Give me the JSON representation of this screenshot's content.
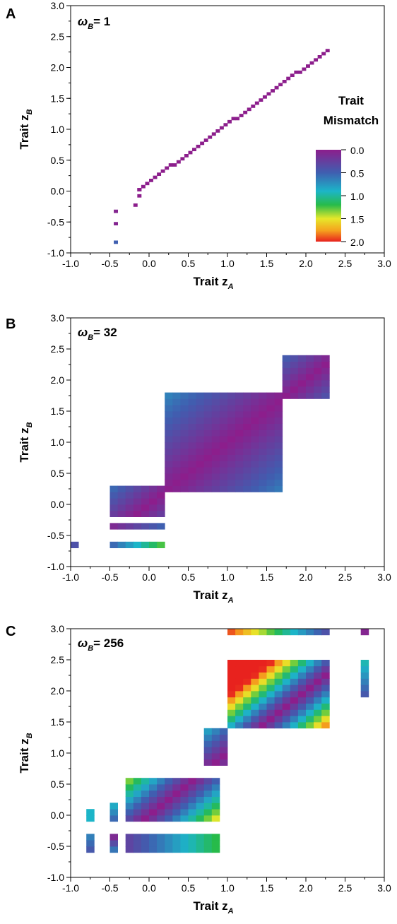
{
  "chart_data": [
    {
      "type": "heatmap",
      "panel_label": "A",
      "annotation": "= 1",
      "annotation_prefix": "ω",
      "annotation_sub": "B",
      "xlabel": "Trait z",
      "xlabel_sub": "A",
      "ylabel": "Trait z",
      "ylabel_sub": "B",
      "xlim": [
        -1.0,
        3.0
      ],
      "ylim": [
        -1.0,
        3.0
      ],
      "xticks": [
        "-1.0",
        "-0.5",
        "0.0",
        "0.5",
        "1.0",
        "1.5",
        "2.0",
        "2.5",
        "3.0"
      ],
      "yticks": [
        "-1.0",
        "-0.5",
        "0.0",
        "0.5",
        "1.0",
        "1.5",
        "2.0",
        "2.5",
        "3.0"
      ],
      "cell_size": 0.05,
      "cells": [
        {
          "x": -0.45,
          "y": -0.85,
          "v": 0.5
        },
        {
          "x": -0.45,
          "y": -0.55,
          "v": 0.05
        },
        {
          "x": -0.45,
          "y": -0.35,
          "v": 0.05
        },
        {
          "x": -0.2,
          "y": -0.25,
          "v": 0.0
        },
        {
          "x": -0.15,
          "y": -0.1,
          "v": 0.0
        },
        {
          "x": -0.15,
          "y": 0.0,
          "v": 0.0
        }
      ],
      "segments": [
        {
          "from": [
            -0.15,
            0.0
          ],
          "to": [
            2.25,
            2.25
          ],
          "v": 0.0
        }
      ],
      "legend": {
        "title": [
          "Trait",
          "Mismatch"
        ],
        "ticks": [
          "0.0",
          "0.5",
          "1.0",
          "1.5",
          "2.0"
        ],
        "range": [
          0.0,
          2.0
        ]
      }
    },
    {
      "type": "heatmap",
      "panel_label": "B",
      "annotation": "= 32",
      "annotation_prefix": "ω",
      "annotation_sub": "B",
      "xlabel": "Trait z",
      "xlabel_sub": "A",
      "ylabel": "Trait z",
      "ylabel_sub": "B",
      "xlim": [
        -1.0,
        3.0
      ],
      "ylim": [
        -1.0,
        3.0
      ],
      "xticks": [
        "-1.0",
        "-0.5",
        "0.0",
        "0.5",
        "1.0",
        "1.5",
        "2.0",
        "2.5",
        "3.0"
      ],
      "yticks": [
        "-1.0",
        "-0.5",
        "0.0",
        "0.5",
        "1.0",
        "1.5",
        "2.0",
        "2.5",
        "3.0"
      ],
      "cell_size": 0.1,
      "blocks": [
        {
          "x0": -1.0,
          "x1": -0.9,
          "y0": -0.7,
          "y1": -0.6,
          "v": 0.4
        },
        {
          "x0": -0.5,
          "x1": 0.2,
          "y0": -0.7,
          "y1": -0.6,
          "v": 0.55,
          "grad": 0.7
        },
        {
          "x0": -0.5,
          "x1": 0.2,
          "y0": -0.4,
          "y1": -0.3,
          "v": 0.1,
          "grad": 0.4
        },
        {
          "x0": -0.5,
          "x1": 0.2,
          "y0": -0.2,
          "y1": 0.3,
          "band": 0.35
        },
        {
          "x0": 0.2,
          "x1": 1.7,
          "y0": 0.2,
          "y1": 1.8,
          "band": 0.2
        },
        {
          "x0": 1.7,
          "x1": 2.3,
          "y0": 1.7,
          "y1": 2.4,
          "band": 0.35
        }
      ]
    },
    {
      "type": "heatmap",
      "panel_label": "C",
      "annotation": "= 256",
      "annotation_prefix": "ω",
      "annotation_sub": "B",
      "xlabel": "Trait z",
      "xlabel_sub": "A",
      "ylabel": "Trait z",
      "ylabel_sub": "B",
      "xlim": [
        -1.0,
        3.0
      ],
      "ylim": [
        -1.0,
        3.0
      ],
      "xticks": [
        "-1.0",
        "-0.5",
        "0.0",
        "0.5",
        "1.0",
        "1.5",
        "2.0",
        "2.5",
        "3.0"
      ],
      "yticks": [
        "-1.0",
        "-0.5",
        "0.0",
        "0.5",
        "1.0",
        "1.5",
        "2.0",
        "2.5",
        "3.0"
      ],
      "cell_size": 0.1,
      "blocks": [
        {
          "x0": 1.0,
          "x1": 2.3,
          "y0": 2.9,
          "y1": 3.0,
          "v": 1.9,
          "grad": -1.5
        },
        {
          "x0": 2.7,
          "x1": 2.8,
          "y0": 2.9,
          "y1": 3.0,
          "v": 0.05
        },
        {
          "x0": 2.7,
          "x1": 2.8,
          "y0": 1.9,
          "y1": 2.5,
          "v": 0.45,
          "vgrad": 0.5
        },
        {
          "x0": 1.0,
          "x1": 2.3,
          "y0": 1.4,
          "y1": 2.5,
          "band": 1.0
        },
        {
          "x0": 0.7,
          "x1": 1.0,
          "y0": 0.8,
          "y1": 1.4,
          "band": 0.6
        },
        {
          "x0": -0.3,
          "x1": 0.9,
          "y0": -0.1,
          "y1": 0.6,
          "band": 0.75
        },
        {
          "x0": -0.3,
          "x1": 0.9,
          "y0": -0.6,
          "y1": -0.3,
          "v": 0.3,
          "grad": 0.9
        },
        {
          "x0": -0.8,
          "x1": -0.7,
          "y0": -0.6,
          "y1": -0.3,
          "v": 0.45,
          "vgrad": 0.2
        },
        {
          "x0": -0.8,
          "x1": -0.7,
          "y0": -0.1,
          "y1": 0.1,
          "v": 0.9
        },
        {
          "x0": -0.5,
          "x1": -0.4,
          "y0": -0.6,
          "y1": -0.3,
          "v": 0.6,
          "vgrad": -0.5
        },
        {
          "x0": -0.5,
          "x1": -0.4,
          "y0": -0.1,
          "y1": 0.2,
          "v": 0.55,
          "vgrad": 0.3
        }
      ]
    }
  ]
}
